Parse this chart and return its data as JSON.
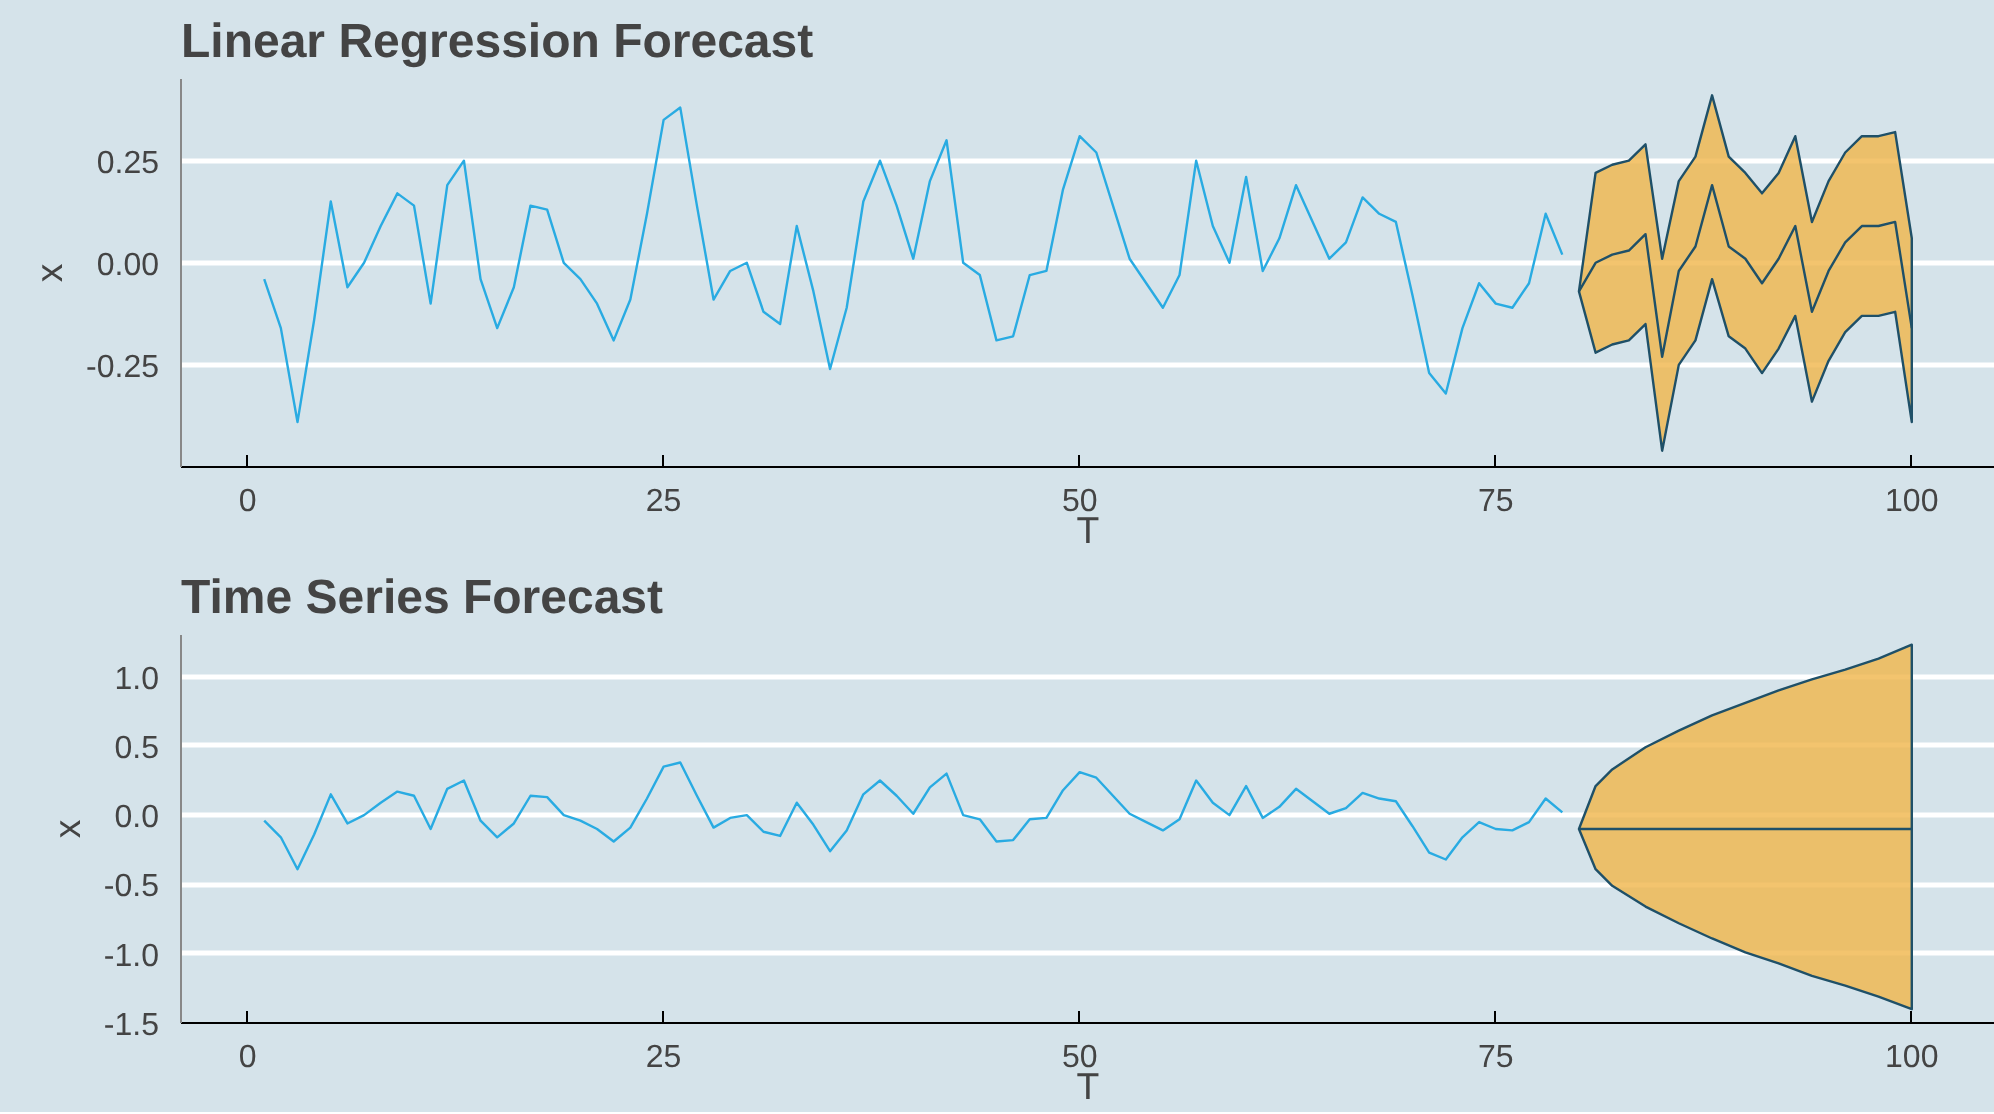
{
  "chart_data": [
    {
      "type": "line",
      "title": "Linear Regression Forecast",
      "xlabel": "T",
      "ylabel": "x",
      "xlim": [
        -4,
        105
      ],
      "ylim": [
        -0.5,
        0.45
      ],
      "xticks": [
        0,
        25,
        50,
        75,
        100
      ],
      "yticks": [
        {
          "value": -0.25,
          "label": "-0.25"
        },
        {
          "value": 0,
          "label": "0.00"
        },
        {
          "value": 0.25,
          "label": "0.25"
        }
      ],
      "grid": "y",
      "series": [
        {
          "color": "#29abe2",
          "x": [
            1,
            2,
            3,
            4,
            5,
            6,
            7,
            8,
            9,
            10,
            11,
            12,
            13,
            14,
            15,
            16,
            17,
            18,
            19,
            20,
            21,
            22,
            23,
            24,
            25,
            26,
            27,
            28,
            29,
            30,
            31,
            32,
            33,
            34,
            35,
            36,
            37,
            38,
            39,
            40,
            41,
            42,
            43,
            44,
            45,
            46,
            47,
            48,
            49,
            50,
            51,
            52,
            53,
            54,
            55,
            56,
            57,
            58,
            59,
            60,
            61,
            62,
            63,
            64,
            65,
            66,
            67,
            68,
            69,
            70,
            71,
            72,
            73,
            74,
            75,
            76,
            77,
            78,
            79
          ],
          "values": [
            -0.04,
            -0.16,
            -0.39,
            -0.14,
            0.15,
            -0.06,
            0.0,
            0.09,
            0.17,
            0.14,
            -0.1,
            0.19,
            0.25,
            -0.04,
            -0.16,
            -0.06,
            0.14,
            0.13,
            0.0,
            -0.04,
            -0.1,
            -0.19,
            -0.09,
            0.12,
            0.35,
            0.38,
            0.14,
            -0.09,
            -0.02,
            0.0,
            -0.12,
            -0.15,
            0.09,
            -0.07,
            -0.26,
            -0.11,
            0.15,
            0.25,
            0.14,
            0.01,
            0.2,
            0.3,
            0.0,
            -0.03,
            -0.19,
            -0.18,
            -0.03,
            -0.02,
            0.18,
            0.31,
            0.27,
            0.14,
            0.01,
            -0.05,
            -0.11,
            -0.03,
            0.25,
            0.09,
            0.0,
            0.21,
            -0.02,
            0.06,
            0.19,
            0.1,
            0.01,
            0.05,
            0.16,
            0.12,
            0.1,
            -0.08,
            -0.27,
            -0.32,
            -0.16,
            -0.05,
            -0.1,
            -0.11,
            -0.05,
            0.12,
            0.02
          ]
        },
        {
          "color": "#1f5068",
          "x": [
            80,
            81,
            82,
            83,
            84,
            85,
            86,
            87,
            88,
            89,
            90,
            91,
            92,
            93,
            94,
            95,
            96,
            97,
            98,
            99,
            100
          ],
          "values": [
            -0.07,
            0.0,
            0.02,
            0.03,
            0.07,
            -0.23,
            -0.02,
            0.04,
            0.19,
            0.04,
            0.01,
            -0.05,
            0.01,
            0.09,
            -0.12,
            -0.02,
            0.05,
            0.09,
            0.09,
            0.1,
            -0.16
          ],
          "lower": [
            -0.07,
            -0.22,
            -0.2,
            -0.19,
            -0.15,
            -0.46,
            -0.25,
            -0.19,
            -0.04,
            -0.18,
            -0.21,
            -0.27,
            -0.21,
            -0.13,
            -0.34,
            -0.24,
            -0.17,
            -0.13,
            -0.13,
            -0.12,
            -0.39
          ],
          "upper": [
            -0.07,
            0.22,
            0.24,
            0.25,
            0.29,
            0.01,
            0.2,
            0.26,
            0.41,
            0.26,
            0.22,
            0.17,
            0.22,
            0.31,
            0.1,
            0.2,
            0.27,
            0.31,
            0.31,
            0.32,
            0.06
          ]
        }
      ]
    },
    {
      "type": "line",
      "title": "Time Series Forecast",
      "xlabel": "T",
      "ylabel": "x",
      "xlim": [
        -4,
        105
      ],
      "ylim": [
        -1.5,
        1.3
      ],
      "xticks": [
        0,
        25,
        50,
        75,
        100
      ],
      "yticks": [
        {
          "value": -1.5,
          "label": "-1.5"
        },
        {
          "value": -1,
          "label": "-1.0"
        },
        {
          "value": -0.5,
          "label": "-0.5"
        },
        {
          "value": 0,
          "label": "0.0"
        },
        {
          "value": 0.5,
          "label": "0.5"
        },
        {
          "value": 1,
          "label": "1.0"
        }
      ],
      "grid": "y",
      "series": [
        {
          "color": "#29abe2",
          "x": [
            1,
            2,
            3,
            4,
            5,
            6,
            7,
            8,
            9,
            10,
            11,
            12,
            13,
            14,
            15,
            16,
            17,
            18,
            19,
            20,
            21,
            22,
            23,
            24,
            25,
            26,
            27,
            28,
            29,
            30,
            31,
            32,
            33,
            34,
            35,
            36,
            37,
            38,
            39,
            40,
            41,
            42,
            43,
            44,
            45,
            46,
            47,
            48,
            49,
            50,
            51,
            52,
            53,
            54,
            55,
            56,
            57,
            58,
            59,
            60,
            61,
            62,
            63,
            64,
            65,
            66,
            67,
            68,
            69,
            70,
            71,
            72,
            73,
            74,
            75,
            76,
            77,
            78,
            79
          ],
          "values": [
            -0.04,
            -0.16,
            -0.39,
            -0.14,
            0.15,
            -0.06,
            0.0,
            0.09,
            0.17,
            0.14,
            -0.1,
            0.19,
            0.25,
            -0.04,
            -0.16,
            -0.06,
            0.14,
            0.13,
            0.0,
            -0.04,
            -0.1,
            -0.19,
            -0.09,
            0.12,
            0.35,
            0.38,
            0.14,
            -0.09,
            -0.02,
            0.0,
            -0.12,
            -0.15,
            0.09,
            -0.07,
            -0.26,
            -0.11,
            0.15,
            0.25,
            0.14,
            0.01,
            0.2,
            0.3,
            0.0,
            -0.03,
            -0.19,
            -0.18,
            -0.03,
            -0.02,
            0.18,
            0.31,
            0.27,
            0.14,
            0.01,
            -0.05,
            -0.11,
            -0.03,
            0.25,
            0.09,
            0.0,
            0.21,
            -0.02,
            0.06,
            0.19,
            0.1,
            0.01,
            0.05,
            0.16,
            0.12,
            0.1,
            -0.08,
            -0.27,
            -0.32,
            -0.16,
            -0.05,
            -0.1,
            -0.11,
            -0.05,
            0.12,
            0.02
          ]
        },
        {
          "color": "#1f5068",
          "x": [
            80,
            81,
            82,
            84,
            86,
            88,
            90,
            92,
            94,
            96,
            98,
            100
          ],
          "values": [
            -0.1,
            -0.1,
            -0.1,
            -0.1,
            -0.1,
            -0.1,
            -0.1,
            -0.1,
            -0.1,
            -0.1,
            -0.1,
            -0.1
          ],
          "lower": [
            -0.1,
            -0.39,
            -0.51,
            -0.66,
            -0.78,
            -0.89,
            -0.99,
            -1.07,
            -1.16,
            -1.23,
            -1.31,
            -1.4
          ],
          "upper": [
            -0.1,
            0.21,
            0.33,
            0.49,
            0.61,
            0.72,
            0.81,
            0.9,
            0.98,
            1.05,
            1.13,
            1.23
          ]
        }
      ]
    }
  ]
}
